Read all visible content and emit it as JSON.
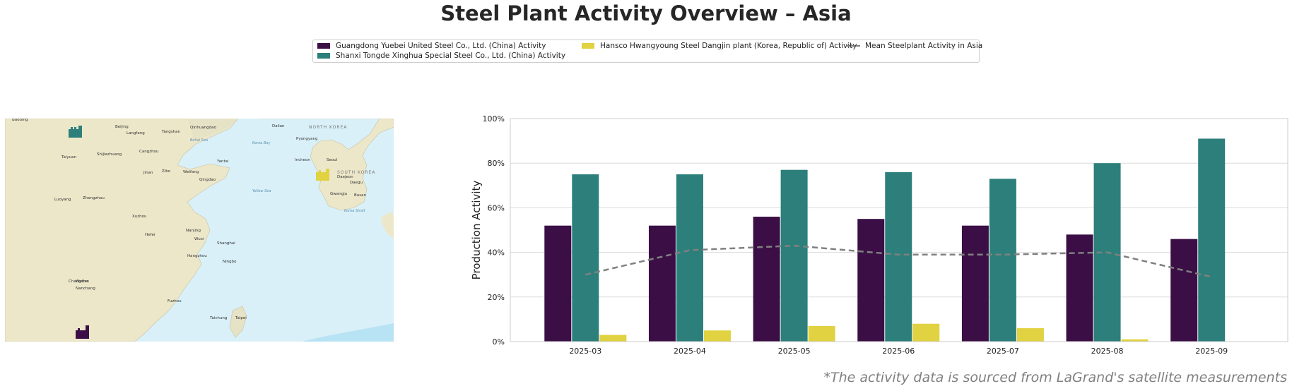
{
  "title": "Steel Plant Activity Overview – Asia",
  "footnote": "*The activity data is sourced from LaGrand's satellite measurements",
  "legend": [
    {
      "label": "Guangdong Yuebei United Steel Co., Ltd. (China) Activity",
      "color": "#3b0f46"
    },
    {
      "label": "Shanxi Tongde Xinghua Special Steel Co., Ltd. (China) Activity",
      "color": "#2c7f7a"
    },
    {
      "label": "Hansco Hwangyoung Steel Dangjin plant (Korea, Republic of) Activity",
      "color": "#e0d240"
    },
    {
      "label": "Mean Steelplant Activity in Asia",
      "color": "#808080"
    }
  ],
  "map": {
    "labels": [
      "Baoding",
      "Beijing",
      "Tangshan",
      "Langfang",
      "Qinhuangdao",
      "Dalian",
      "Pyongyang",
      "Taiyuan",
      "Shijiazhuang",
      "Cangzhou",
      "Yantai",
      "Incheon",
      "Seoul",
      "Jinan",
      "Zibo",
      "Weifang",
      "Qingdao",
      "Daejeon",
      "Daegu",
      "Busan",
      "Gwangju",
      "Zhengzhou",
      "Luoyang",
      "Xuzhou",
      "Hefei",
      "Nanjing",
      "Wuxi",
      "Shanghai",
      "Hangzhou",
      "Ningbo",
      "Wuhan",
      "Changsha",
      "Nanchang",
      "Fuzhou",
      "Taichung",
      "Taipei"
    ],
    "sea_labels": [
      "Bohai Sea",
      "Korea Bay",
      "Yellow Sea",
      "Korea Strait"
    ],
    "country_labels": [
      "NORTH KOREA",
      "SOUTH KOREA"
    ],
    "water_color": "#d9f0f8",
    "land_color": "#ece7c9"
  },
  "chart_data": {
    "type": "bar",
    "categories": [
      "2025-03",
      "2025-04",
      "2025-05",
      "2025-06",
      "2025-07",
      "2025-08",
      "2025-09"
    ],
    "series": [
      {
        "name": "Guangdong Yuebei United Steel Co., Ltd. (China) Activity",
        "color": "#3b0f46",
        "values": [
          52,
          52,
          56,
          55,
          52,
          48,
          46
        ]
      },
      {
        "name": "Shanxi Tongde Xinghua Special Steel Co., Ltd. (China) Activity",
        "color": "#2c7f7a",
        "values": [
          75,
          75,
          77,
          76,
          73,
          80,
          91
        ]
      },
      {
        "name": "Hansco Hwangyoung Steel Dangjin plant (Korea, Republic of) Activity",
        "color": "#e0d240",
        "values": [
          3,
          5,
          7,
          8,
          6,
          1,
          0
        ]
      }
    ],
    "mean_line": {
      "name": "Mean Steelplant Activity in Asia",
      "color": "#808080",
      "values": [
        30,
        41,
        43,
        39,
        39,
        40,
        29
      ]
    },
    "ylabel": "Production Activity",
    "ylim": [
      0,
      100
    ],
    "yticks": [
      "0%",
      "20%",
      "40%",
      "60%",
      "80%",
      "100%"
    ],
    "grid": true
  }
}
